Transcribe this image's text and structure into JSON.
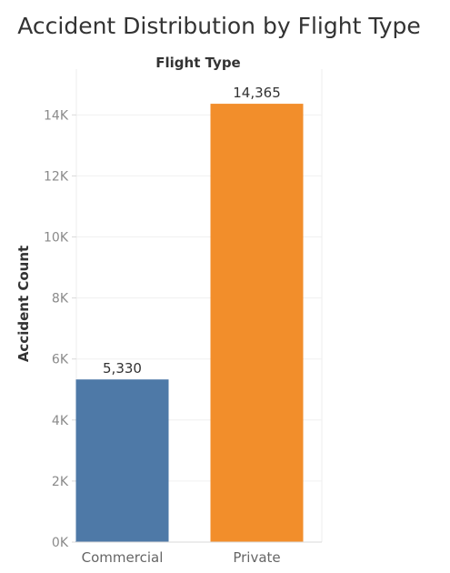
{
  "chart_data": {
    "type": "bar",
    "title": "Accident Distribution by Flight Type",
    "column_header": "Flight Type",
    "ylabel": "Accident Count",
    "categories": [
      "Commercial",
      "Private"
    ],
    "values": [
      5330,
      14365
    ],
    "data_labels": [
      "5,330",
      "14,365"
    ],
    "bar_colors": [
      "#4e79a7",
      "#f28e2b"
    ],
    "ylim": [
      0,
      15500
    ],
    "y_ticks": [
      0,
      2000,
      4000,
      6000,
      8000,
      10000,
      12000,
      14000
    ],
    "y_tick_labels": [
      "0K",
      "2K",
      "4K",
      "6K",
      "8K",
      "10K",
      "12K",
      "14K"
    ],
    "grid": true,
    "legend": "none"
  }
}
